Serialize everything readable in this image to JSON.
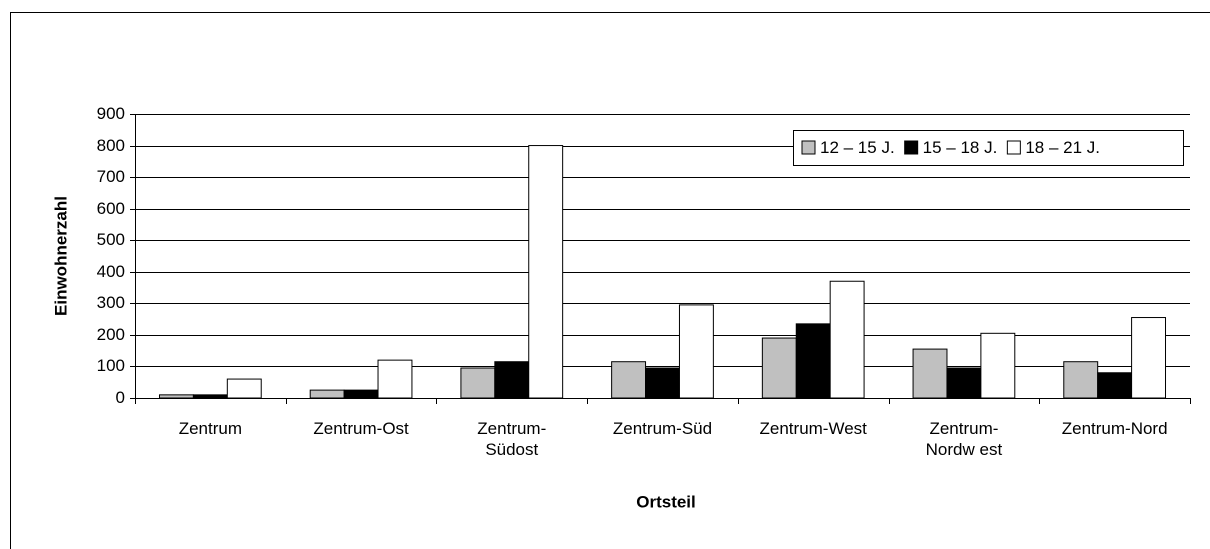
{
  "chart_data": {
    "type": "bar",
    "x_label": "Ortsteil",
    "y_label": "Einwohnerzahl",
    "categories": [
      "Zentrum",
      "Zentrum-Ost",
      "Zentrum-\nSüdost",
      "Zentrum-Süd",
      "Zentrum-West",
      "Zentrum-\nNordw est",
      "Zentrum-Nord"
    ],
    "series": [
      {
        "name": "12 – 15 J.",
        "color": "#c0c0c0",
        "values": [
          10,
          25,
          95,
          115,
          190,
          155,
          115
        ]
      },
      {
        "name": "15 – 18 J.",
        "color": "#000000",
        "values": [
          10,
          25,
          115,
          95,
          235,
          95,
          80
        ]
      },
      {
        "name": "18 – 21 J.",
        "color": "#ffffff",
        "values": [
          60,
          120,
          800,
          295,
          370,
          205,
          255
        ]
      }
    ],
    "ylim": [
      0,
      900
    ],
    "yticks": [
      0,
      100,
      200,
      300,
      400,
      500,
      600,
      700,
      800,
      900
    ],
    "grid": true,
    "legend": "upper right"
  }
}
